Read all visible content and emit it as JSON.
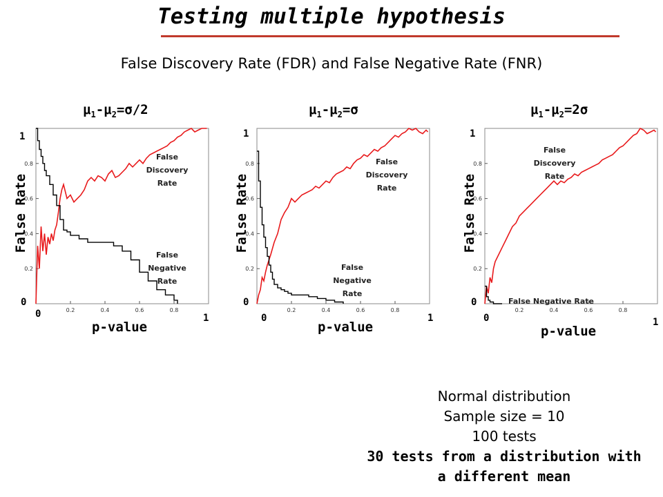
{
  "title": "Testing multiple hypothesis",
  "subtitle": "False Discovery Rate (FDR) and False Negative Rate (FNR)",
  "notes": [
    "Normal distribution",
    "Sample size = 10",
    "100 tests",
    "30 tests from a distribution with",
    "a different mean"
  ],
  "colors": {
    "fdr": "#e8191b",
    "fnr": "#000000",
    "rule": "#c0392b"
  },
  "chart_data": [
    {
      "type": "line",
      "title_main": "μ",
      "title_sub1": "1",
      "title_mid": "-μ",
      "title_sub2": "2",
      "title_tail": "=σ/2",
      "xlabel": "p-value",
      "ylabel": "False Rate",
      "xlim": [
        0,
        1
      ],
      "ylim": [
        0,
        1
      ],
      "x_ticks": [
        "0.2",
        "0.4",
        "0.6",
        "0.8"
      ],
      "y_ticks": [
        "0.2",
        "0.4",
        "0.6",
        "0.8"
      ],
      "x_end_labels": [
        "0",
        "1"
      ],
      "y_end_labels": [
        "0",
        "1"
      ],
      "annotations": {
        "fdr": [
          "False",
          "Discovery",
          "Rate"
        ],
        "fnr": [
          "False",
          "Negative",
          "Rate"
        ]
      },
      "series": [
        {
          "key": "fdr",
          "x": [
            0.0,
            0.01,
            0.02,
            0.03,
            0.04,
            0.05,
            0.06,
            0.07,
            0.08,
            0.09,
            0.1,
            0.11,
            0.12,
            0.13,
            0.14,
            0.15,
            0.16,
            0.18,
            0.2,
            0.22,
            0.24,
            0.26,
            0.28,
            0.3,
            0.32,
            0.34,
            0.36,
            0.38,
            0.4,
            0.42,
            0.44,
            0.46,
            0.48,
            0.5,
            0.52,
            0.54,
            0.56,
            0.58,
            0.6,
            0.62,
            0.64,
            0.66,
            0.68,
            0.7,
            0.72,
            0.74,
            0.76,
            0.78,
            0.8,
            0.82,
            0.84,
            0.86,
            0.88,
            0.9,
            0.92,
            0.94,
            0.96,
            0.98,
            0.99
          ],
          "y": [
            0.0,
            0.33,
            0.2,
            0.44,
            0.3,
            0.4,
            0.28,
            0.38,
            0.34,
            0.4,
            0.36,
            0.42,
            0.45,
            0.52,
            0.6,
            0.65,
            0.68,
            0.6,
            0.62,
            0.58,
            0.6,
            0.62,
            0.65,
            0.7,
            0.72,
            0.7,
            0.73,
            0.72,
            0.7,
            0.74,
            0.76,
            0.72,
            0.73,
            0.75,
            0.77,
            0.8,
            0.78,
            0.8,
            0.82,
            0.8,
            0.83,
            0.85,
            0.86,
            0.87,
            0.88,
            0.89,
            0.9,
            0.92,
            0.93,
            0.95,
            0.96,
            0.98,
            0.99,
            1.0,
            0.98,
            0.99,
            1.0,
            1.01,
            1.0
          ]
        },
        {
          "key": "fnr",
          "x": [
            0.0,
            0.01,
            0.02,
            0.03,
            0.04,
            0.05,
            0.06,
            0.08,
            0.1,
            0.12,
            0.14,
            0.16,
            0.18,
            0.2,
            0.25,
            0.3,
            0.35,
            0.4,
            0.45,
            0.5,
            0.55,
            0.6,
            0.65,
            0.7,
            0.75,
            0.8,
            0.82
          ],
          "y": [
            1.0,
            0.93,
            0.88,
            0.84,
            0.8,
            0.76,
            0.73,
            0.68,
            0.62,
            0.56,
            0.48,
            0.42,
            0.41,
            0.39,
            0.37,
            0.35,
            0.35,
            0.35,
            0.33,
            0.3,
            0.25,
            0.18,
            0.13,
            0.08,
            0.05,
            0.02,
            0.0
          ]
        }
      ]
    },
    {
      "type": "line",
      "title_main": "μ",
      "title_sub1": "1",
      "title_mid": "-μ",
      "title_sub2": "2",
      "title_tail": "=σ",
      "xlabel": "p-value",
      "ylabel": "False Rate",
      "xlim": [
        0,
        1
      ],
      "ylim": [
        0,
        1
      ],
      "x_ticks": [
        "0.2",
        "0.4",
        "0.6",
        "0.8"
      ],
      "y_ticks": [
        "0.2",
        "0.4",
        "0.6",
        "0.8"
      ],
      "x_end_labels": [
        "0",
        "1"
      ],
      "y_end_labels": [
        "0",
        "1"
      ],
      "annotations": {
        "fdr": [
          "False",
          "Discovery",
          "Rate"
        ],
        "fnr": [
          "False",
          "Negative",
          "Rate"
        ]
      },
      "series": [
        {
          "key": "fdr",
          "x": [
            0.0,
            0.01,
            0.02,
            0.03,
            0.04,
            0.05,
            0.06,
            0.08,
            0.1,
            0.12,
            0.14,
            0.16,
            0.18,
            0.2,
            0.22,
            0.24,
            0.26,
            0.28,
            0.3,
            0.32,
            0.34,
            0.36,
            0.38,
            0.4,
            0.42,
            0.44,
            0.46,
            0.48,
            0.5,
            0.52,
            0.54,
            0.56,
            0.58,
            0.6,
            0.62,
            0.64,
            0.66,
            0.68,
            0.7,
            0.72,
            0.74,
            0.76,
            0.78,
            0.8,
            0.82,
            0.84,
            0.86,
            0.88,
            0.9,
            0.92,
            0.94,
            0.96,
            0.98,
            0.99
          ],
          "y": [
            0.0,
            0.05,
            0.08,
            0.15,
            0.13,
            0.18,
            0.22,
            0.28,
            0.35,
            0.4,
            0.48,
            0.52,
            0.55,
            0.6,
            0.58,
            0.6,
            0.62,
            0.63,
            0.64,
            0.65,
            0.67,
            0.66,
            0.68,
            0.7,
            0.69,
            0.72,
            0.74,
            0.75,
            0.76,
            0.78,
            0.77,
            0.8,
            0.82,
            0.83,
            0.85,
            0.84,
            0.86,
            0.88,
            0.87,
            0.89,
            0.9,
            0.92,
            0.94,
            0.96,
            0.95,
            0.97,
            0.98,
            1.0,
            0.99,
            1.0,
            0.98,
            0.97,
            0.99,
            0.98
          ]
        },
        {
          "key": "fnr",
          "x": [
            0.0,
            0.01,
            0.02,
            0.03,
            0.04,
            0.05,
            0.06,
            0.07,
            0.08,
            0.09,
            0.1,
            0.12,
            0.14,
            0.16,
            0.18,
            0.2,
            0.25,
            0.3,
            0.35,
            0.4,
            0.45,
            0.5
          ],
          "y": [
            0.87,
            0.7,
            0.55,
            0.45,
            0.38,
            0.32,
            0.27,
            0.22,
            0.18,
            0.14,
            0.11,
            0.09,
            0.08,
            0.07,
            0.06,
            0.05,
            0.05,
            0.04,
            0.03,
            0.02,
            0.01,
            0.0
          ]
        }
      ]
    },
    {
      "type": "line",
      "title_main": "μ",
      "title_sub1": "1",
      "title_mid": "-μ",
      "title_sub2": "2",
      "title_tail": "=2σ",
      "xlabel": "p-value",
      "ylabel": "False Rate",
      "xlim": [
        0,
        1
      ],
      "ylim": [
        0,
        1
      ],
      "x_ticks": [
        "0.2",
        "0.4",
        "0.6",
        "0.8"
      ],
      "y_ticks": [
        "0.2",
        "0.4",
        "0.6",
        "0.8"
      ],
      "x_end_labels": [
        "0",
        "1"
      ],
      "y_end_labels": [
        "0",
        "1"
      ],
      "annotations": {
        "fdr": [
          "False",
          "Discovery",
          "Rate"
        ],
        "fnr": [
          "False Negative Rate"
        ]
      },
      "series": [
        {
          "key": "fdr",
          "x": [
            0.0,
            0.01,
            0.02,
            0.03,
            0.04,
            0.05,
            0.06,
            0.08,
            0.1,
            0.12,
            0.14,
            0.16,
            0.18,
            0.2,
            0.22,
            0.24,
            0.26,
            0.28,
            0.3,
            0.32,
            0.34,
            0.36,
            0.38,
            0.4,
            0.42,
            0.44,
            0.46,
            0.48,
            0.5,
            0.52,
            0.54,
            0.56,
            0.58,
            0.6,
            0.62,
            0.64,
            0.66,
            0.68,
            0.7,
            0.72,
            0.74,
            0.76,
            0.78,
            0.8,
            0.82,
            0.84,
            0.86,
            0.88,
            0.9,
            0.92,
            0.94,
            0.96,
            0.98,
            0.99
          ],
          "y": [
            0.0,
            0.1,
            0.06,
            0.15,
            0.12,
            0.2,
            0.24,
            0.28,
            0.32,
            0.36,
            0.4,
            0.44,
            0.46,
            0.5,
            0.52,
            0.54,
            0.56,
            0.58,
            0.6,
            0.62,
            0.64,
            0.66,
            0.68,
            0.7,
            0.68,
            0.7,
            0.69,
            0.71,
            0.72,
            0.74,
            0.73,
            0.75,
            0.76,
            0.77,
            0.78,
            0.79,
            0.8,
            0.82,
            0.83,
            0.84,
            0.85,
            0.87,
            0.89,
            0.9,
            0.92,
            0.94,
            0.96,
            0.97,
            1.0,
            0.99,
            0.97,
            0.98,
            0.99,
            0.98
          ]
        },
        {
          "key": "fnr",
          "x": [
            0.0,
            0.01,
            0.02,
            0.03,
            0.05,
            0.1
          ],
          "y": [
            0.1,
            0.04,
            0.02,
            0.01,
            0.0,
            0.0
          ]
        }
      ]
    }
  ]
}
